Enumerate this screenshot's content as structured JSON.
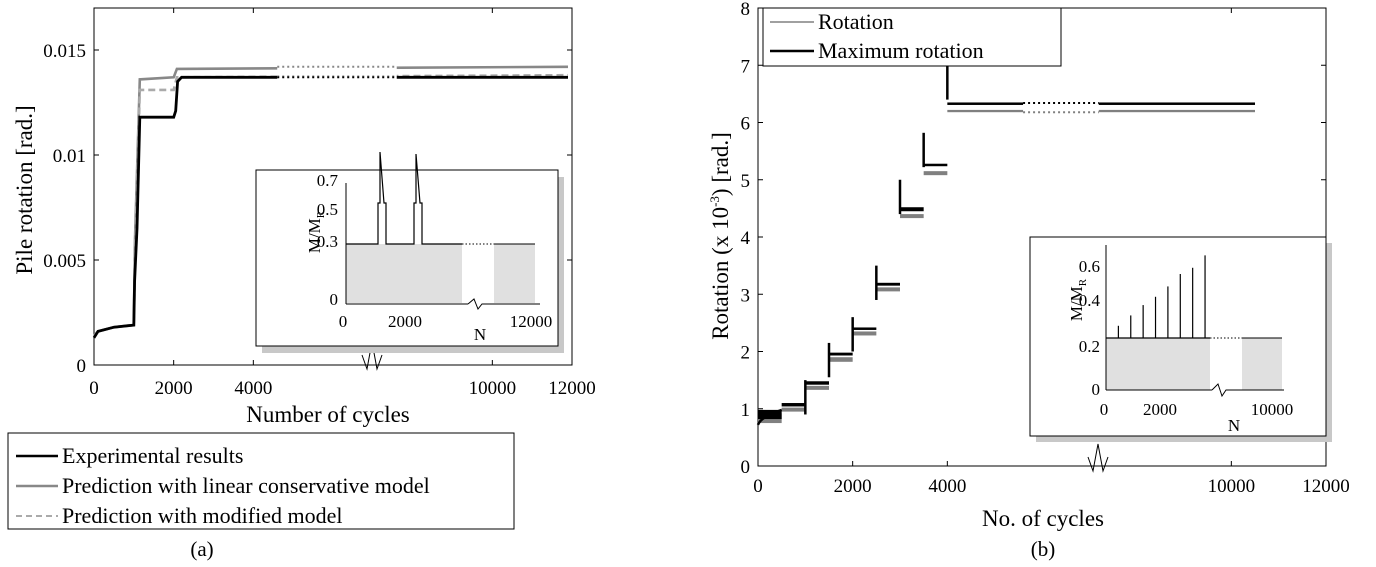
{
  "panels": {
    "a": {
      "caption": "(a)"
    },
    "b": {
      "caption": "(b)"
    }
  },
  "chart_data": [
    {
      "type": "line",
      "panel": "a",
      "xlabel": "Number of cycles",
      "ylabel": "Pile rotation [rad.]",
      "xlim": [
        0,
        12000
      ],
      "ylim": [
        0,
        0.017
      ],
      "xticks": [
        0,
        2000,
        4000,
        10000,
        12000
      ],
      "xtick_labels": [
        "0",
        "2000",
        "4000",
        "10000",
        "12000"
      ],
      "yticks": [
        0,
        0.005,
        0.01,
        0.015
      ],
      "ytick_labels": [
        "0",
        "0.005",
        "0.01",
        "0.015"
      ],
      "axis_break": "x-axis break between 4000 and 10000",
      "legend_position": "below plot",
      "series": [
        {
          "name": "Experimental results",
          "color": "#000000",
          "style": "solid",
          "points": [
            [
              0,
              0.0013
            ],
            [
              100,
              0.0016
            ],
            [
              500,
              0.0018
            ],
            [
              1000,
              0.0019
            ],
            [
              1020,
              0.004
            ],
            [
              1080,
              0.0065
            ],
            [
              1150,
              0.0118
            ],
            [
              1600,
              0.0118
            ],
            [
              2000,
              0.0118
            ],
            [
              2050,
              0.0121
            ],
            [
              2100,
              0.0135
            ],
            [
              2200,
              0.0137
            ],
            [
              11900,
              0.0137
            ]
          ]
        },
        {
          "name": "Prediction with linear conservative model",
          "color": "#888888",
          "style": "solid",
          "points": [
            [
              0,
              0.0014
            ],
            [
              100,
              0.0016
            ],
            [
              500,
              0.0018
            ],
            [
              1000,
              0.0019
            ],
            [
              1030,
              0.006
            ],
            [
              1150,
              0.0136
            ],
            [
              2000,
              0.0137
            ],
            [
              2080,
              0.0141
            ],
            [
              11900,
              0.0142
            ]
          ]
        },
        {
          "name": "Prediction with modified model",
          "color": "#aaaaaa",
          "style": "dashed",
          "points": [
            [
              0,
              0.0014
            ],
            [
              100,
              0.0016
            ],
            [
              500,
              0.0018
            ],
            [
              1000,
              0.0019
            ],
            [
              1030,
              0.005
            ],
            [
              1150,
              0.0131
            ],
            [
              2000,
              0.0131
            ],
            [
              2080,
              0.0137
            ],
            [
              11900,
              0.0138
            ]
          ]
        }
      ],
      "inset": {
        "ylabel": "M/M",
        "ylabel_sub": "R",
        "xlabel": "N",
        "xticks": [
          "0",
          "2000",
          "12000"
        ],
        "yticks": [
          "0",
          "0.3",
          "0.5",
          "0.7"
        ],
        "description": "base level 0.25 with two load pulses to about 0.45, peaks about 0.68",
        "points": [
          [
            0,
            0.25
          ],
          [
            1000,
            0.25
          ],
          [
            1000,
            0.45
          ],
          [
            1050,
            0.45
          ],
          [
            1080,
            0.68
          ],
          [
            1150,
            0.45
          ],
          [
            1200,
            0.45
          ],
          [
            1200,
            0.25
          ],
          [
            2000,
            0.25
          ],
          [
            2000,
            0.45
          ],
          [
            2050,
            0.45
          ],
          [
            2080,
            0.68
          ],
          [
            2150,
            0.45
          ],
          [
            2200,
            0.45
          ],
          [
            2200,
            0.25
          ],
          [
            12000,
            0.25
          ]
        ]
      }
    },
    {
      "type": "line",
      "panel": "b",
      "xlabel": "No. of cycles",
      "ylabel": "Rotation (x 10",
      "ylabel_sup": "-3",
      "ylabel_end": ") [rad.]",
      "xlim": [
        0,
        12000
      ],
      "ylim": [
        0,
        8
      ],
      "xticks": [
        0,
        2000,
        4000,
        10000,
        12000
      ],
      "xtick_labels": [
        "0",
        "2000",
        "4000",
        "10000",
        "12000"
      ],
      "yticks": [
        0,
        1,
        2,
        3,
        4,
        5,
        6,
        7,
        8
      ],
      "ytick_labels": [
        "0",
        "1",
        "2",
        "3",
        "4",
        "5",
        "6",
        "7",
        "8"
      ],
      "axis_break": "x-axis break between 4000 and 10000",
      "legend_position": "top-left",
      "series": [
        {
          "name": "Rotation",
          "color": "#808080",
          "style": "band",
          "steps": [
            [
              0,
              500,
              0.75,
              0.92
            ],
            [
              500,
              1000,
              0.95,
              1.02
            ],
            [
              1000,
              1500,
              1.33,
              1.4
            ],
            [
              1500,
              2000,
              1.82,
              1.9
            ],
            [
              2000,
              2500,
              2.28,
              2.35
            ],
            [
              2500,
              3000,
              3.05,
              3.12
            ],
            [
              3000,
              3500,
              4.33,
              4.4
            ],
            [
              3500,
              4000,
              5.08,
              5.15
            ],
            [
              4000,
              10500,
              6.18,
              6.22
            ]
          ]
        },
        {
          "name": "Maximum rotation",
          "color": "#000000",
          "style": "solid",
          "steps": [
            [
              0,
              500,
              0.82,
              0.98
            ],
            [
              500,
              1000,
              1.04,
              1.1
            ],
            [
              1000,
              1500,
              1.42,
              1.48
            ],
            [
              1500,
              2000,
              1.93,
              1.98
            ],
            [
              2000,
              2500,
              2.38,
              2.42
            ],
            [
              2500,
              3000,
              3.15,
              3.2
            ],
            [
              3000,
              3500,
              4.45,
              4.52
            ],
            [
              3500,
              4000,
              5.25,
              5.28
            ],
            [
              4000,
              10500,
              6.32,
              6.35
            ]
          ],
          "spikes": [
            [
              1000,
              1.5
            ],
            [
              1500,
              2.15
            ],
            [
              2000,
              2.6
            ],
            [
              2500,
              3.5
            ],
            [
              3000,
              5.0
            ],
            [
              3500,
              5.82
            ],
            [
              4000,
              7.0
            ]
          ]
        }
      ],
      "inset": {
        "ylabel": "M/M",
        "ylabel_sub": "R",
        "xlabel": "N",
        "xticks": [
          "0",
          "2000",
          "10000"
        ],
        "yticks": [
          "0",
          "0.2",
          "0.4",
          "0.6"
        ],
        "description": "base level 0.27 with spikes every 500 cycles increasing from 0.31 to 0.65",
        "spikes": [
          [
            500,
            0.31
          ],
          [
            1000,
            0.36
          ],
          [
            1500,
            0.41
          ],
          [
            2000,
            0.45
          ],
          [
            2500,
            0.5
          ],
          [
            3000,
            0.56
          ],
          [
            3500,
            0.59
          ],
          [
            4000,
            0.65
          ]
        ]
      }
    }
  ]
}
